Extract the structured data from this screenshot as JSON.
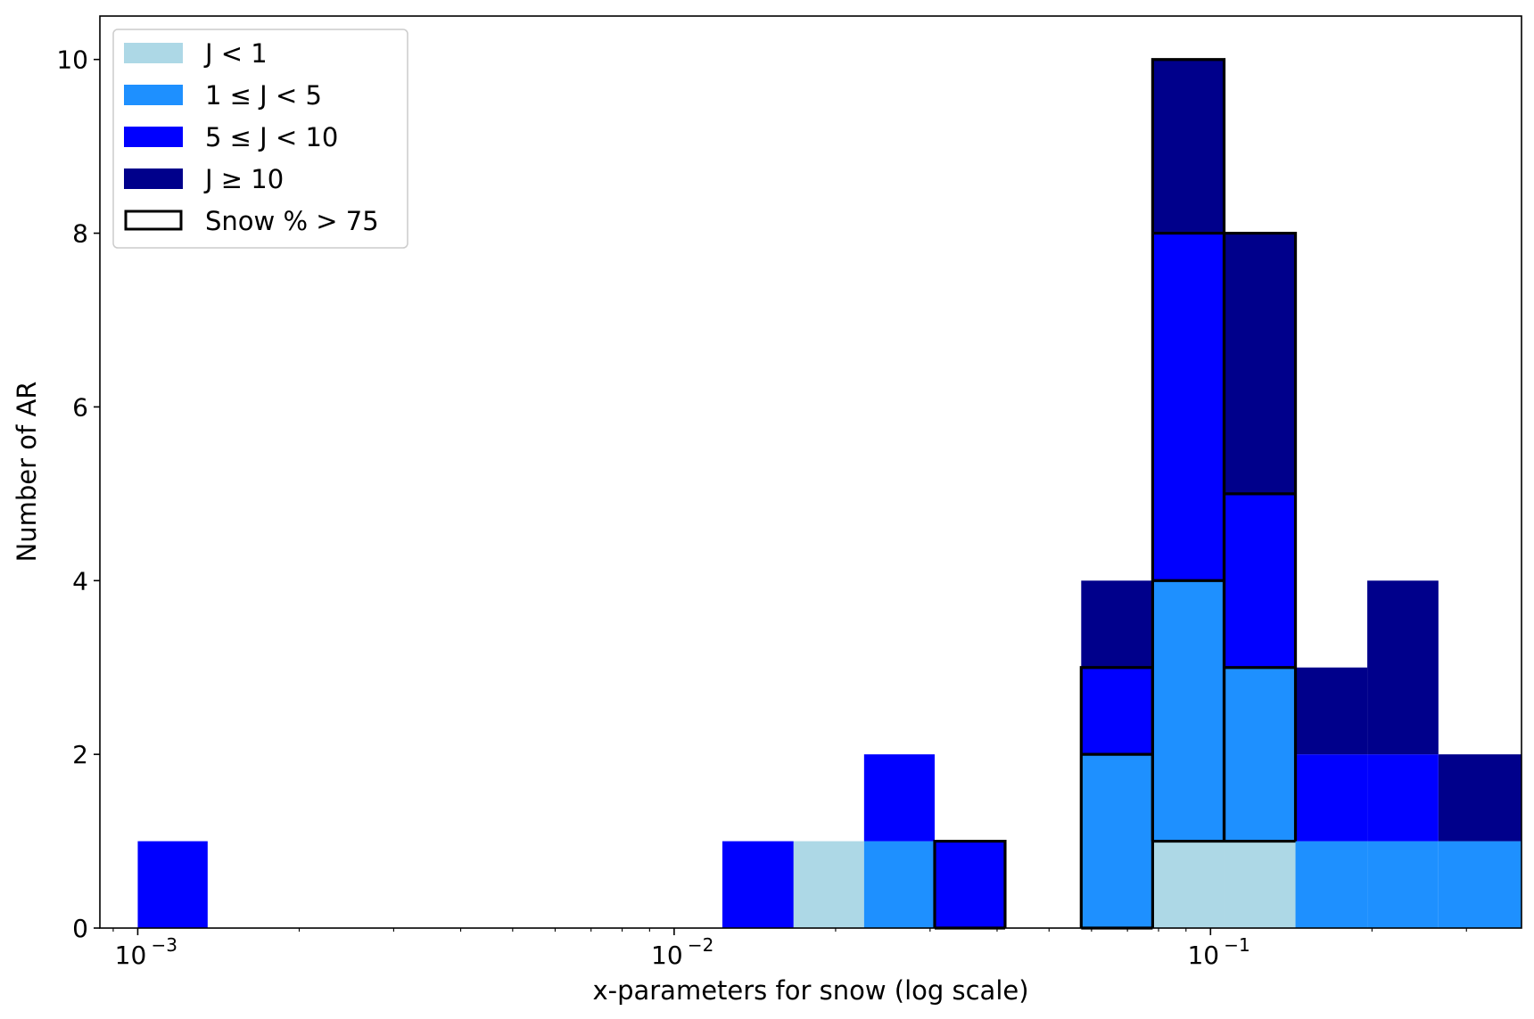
{
  "chart_data": {
    "type": "bar",
    "subtype": "stacked-histogram",
    "xlabel": "x-parameters for snow (log scale)",
    "ylabel": "Number of AR",
    "x_scale": "log",
    "xlim": [
      0.00085,
      0.38
    ],
    "ylim": [
      0,
      10.5
    ],
    "yticks": [
      0,
      2,
      4,
      6,
      8,
      10
    ],
    "xticks": [
      {
        "value": 0.001,
        "base": "10",
        "exp": "−3"
      },
      {
        "value": 0.01,
        "base": "10",
        "exp": "−2"
      },
      {
        "value": 0.1,
        "base": "10",
        "exp": "−1"
      }
    ],
    "grid": false,
    "legend_position": "top-left",
    "series": [
      {
        "name": "J < 1",
        "color": "#add8e6"
      },
      {
        "name": "1 ≤ J < 5",
        "color": "#1e90ff"
      },
      {
        "name": "5 ≤ J < 10",
        "color": "#0000ff"
      },
      {
        "name": "J ≥ 10",
        "color": "#00008b"
      }
    ],
    "outline_legend": "Snow % > 75",
    "bins": [
      {
        "x0": 0.001,
        "x1": 0.00135,
        "counts": [
          0,
          0,
          1,
          0
        ],
        "snow_outline": 0
      },
      {
        "x0": 0.0123,
        "x1": 0.0167,
        "counts": [
          0,
          0,
          1,
          0
        ],
        "snow_outline": 0
      },
      {
        "x0": 0.0167,
        "x1": 0.0226,
        "counts": [
          1,
          0,
          0,
          0
        ],
        "snow_outline": 0
      },
      {
        "x0": 0.0226,
        "x1": 0.0306,
        "counts": [
          0,
          1,
          1,
          0
        ],
        "snow_outline": 0
      },
      {
        "x0": 0.0306,
        "x1": 0.0414,
        "counts": [
          0,
          0,
          1,
          0
        ],
        "snow_outline": 1
      },
      {
        "x0": 0.0574,
        "x1": 0.078,
        "counts": [
          0,
          2,
          1,
          1
        ],
        "snow_outline": 3
      },
      {
        "x0": 0.078,
        "x1": 0.106,
        "counts": [
          1,
          3,
          4,
          2
        ],
        "snow_outline": 10
      },
      {
        "x0": 0.106,
        "x1": 0.144,
        "counts": [
          1,
          2,
          2,
          3
        ],
        "snow_outline": 8
      },
      {
        "x0": 0.144,
        "x1": 0.196,
        "counts": [
          0,
          1,
          1,
          1
        ],
        "snow_outline": 0
      },
      {
        "x0": 0.196,
        "x1": 0.266,
        "counts": [
          0,
          1,
          1,
          2
        ],
        "snow_outline": 0
      },
      {
        "x0": 0.266,
        "x1": 0.38,
        "counts": [
          0,
          1,
          0,
          1
        ],
        "snow_outline": 0
      }
    ],
    "outline_steps": [
      {
        "x0": 0.0306,
        "x1": 0.0414,
        "levels": [
          0,
          1
        ]
      },
      {
        "x0": 0.0574,
        "x1": 0.078,
        "levels": [
          0,
          2,
          3
        ]
      },
      {
        "x0": 0.078,
        "x1": 0.106,
        "levels": [
          1,
          4,
          8,
          10
        ]
      },
      {
        "x0": 0.106,
        "x1": 0.144,
        "levels": [
          1,
          3,
          5,
          8
        ]
      }
    ]
  }
}
